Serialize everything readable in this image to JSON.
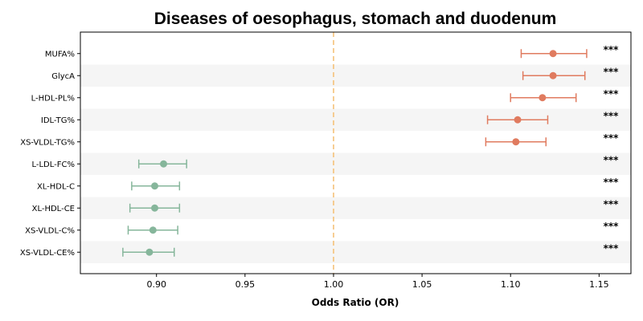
{
  "chart_data": {
    "type": "forest",
    "title": "Diseases of oesophagus, stomach and duodenum",
    "xlabel": "Odds Ratio (OR)",
    "xlim": [
      0.857,
      1.168
    ],
    "xticks": [
      0.9,
      0.95,
      1.0,
      1.05,
      1.1,
      1.15
    ],
    "xtick_labels": [
      "0.90",
      "0.95",
      "1.00",
      "1.05",
      "1.10",
      "1.15"
    ],
    "reference_line": 1.0,
    "categories": [
      "MUFA%",
      "GlycA",
      "L-HDL-PL%",
      "IDL-TG%",
      "XS-VLDL-TG%",
      "L-LDL-FC%",
      "XL-HDL-C",
      "XL-HDL-CE",
      "XS-VLDL-C%",
      "XS-VLDL-CE%"
    ],
    "or": [
      1.124,
      1.124,
      1.118,
      1.104,
      1.103,
      0.904,
      0.899,
      0.899,
      0.898,
      0.896
    ],
    "lower": [
      1.106,
      1.107,
      1.1,
      1.087,
      1.086,
      0.89,
      0.886,
      0.885,
      0.884,
      0.881
    ],
    "upper": [
      1.143,
      1.142,
      1.137,
      1.121,
      1.12,
      0.917,
      0.913,
      0.913,
      0.912,
      0.91
    ],
    "significance": [
      "***",
      "***",
      "***",
      "***",
      "***",
      "***",
      "***",
      "***",
      "***",
      "***"
    ],
    "colors": {
      "positive": "#e07b5f",
      "negative": "#86b69b",
      "reference": "#f5c27a",
      "stripe": "#f5f5f5"
    }
  }
}
